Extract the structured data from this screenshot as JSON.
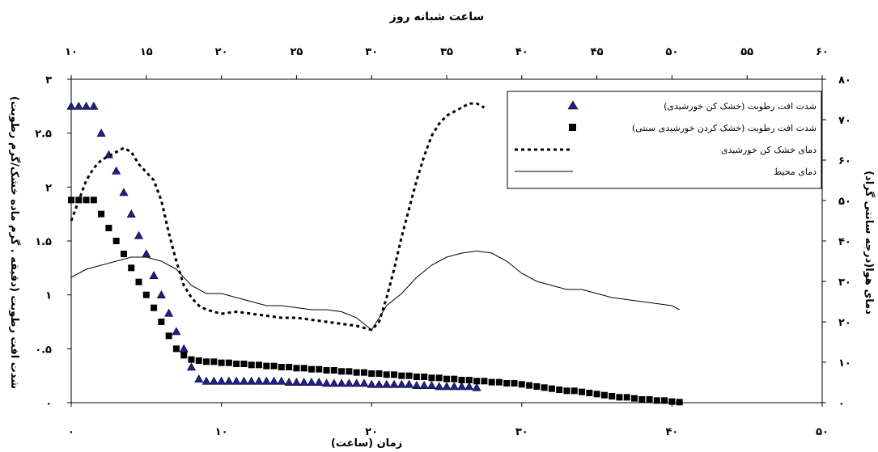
{
  "chart_data": {
    "type": "scatter",
    "top_axis_title": "ساعت شبانه روز",
    "x_axis_title": "زمان (ساعت)",
    "y_left_title": "شدت افت رطوبت (دقیقه . گرم ماده خشک/گرم رطوبت)",
    "y_right_title": "دمای هوا(درجه سانتی گراد)",
    "x_ticks": [
      "۰",
      "۱۰",
      "۲۰",
      "۳۰",
      "۴۰",
      "۵۰"
    ],
    "top_ticks": [
      "۱۰",
      "۱۵",
      "۲۰",
      "۲۵",
      "۳۰",
      "۳۵",
      "۴۰",
      "۴۵",
      "۵۰",
      "۵۵",
      "۶۰"
    ],
    "y_left_ticks": [
      "۰",
      "۰.۵",
      "۱",
      "۱.۵",
      "۲",
      "۲.۵",
      "۳"
    ],
    "y_right_ticks": [
      "۰",
      "۱۰",
      "۲۰",
      "۳۰",
      "۴۰",
      "۵۰",
      "۶۰",
      "۷۰",
      "۸۰"
    ],
    "xlim": [
      0,
      50
    ],
    "top_xlim": [
      10,
      60
    ],
    "y_left_lim": [
      0,
      3
    ],
    "y_right_lim": [
      0,
      80
    ],
    "legend_position": "top-right",
    "series": [
      {
        "name": "شدت افت رطوبت (خشک کن خورشیدی)",
        "marker": "triangle",
        "axis": "left",
        "color": "#1f1f8f",
        "x": [
          0.0,
          0.5,
          1.0,
          1.5,
          2.0,
          2.5,
          3.0,
          3.5,
          4.0,
          4.5,
          5.0,
          5.5,
          6.0,
          6.5,
          7.0,
          7.5,
          8.0,
          8.5,
          9.0,
          9.5,
          10.0,
          10.5,
          11.0,
          11.5,
          12.0,
          12.5,
          13.0,
          13.5,
          14.0,
          14.5,
          15.0,
          15.5,
          16.0,
          16.5,
          17.0,
          17.5,
          18.0,
          18.5,
          19.0,
          19.5,
          20.0,
          20.5,
          21.0,
          21.5,
          22.0,
          22.5,
          23.0,
          23.5,
          24.0,
          24.5,
          25.0,
          25.5,
          26.0,
          26.5,
          27.0
        ],
        "y": [
          2.75,
          2.75,
          2.75,
          2.75,
          2.5,
          2.3,
          2.15,
          1.95,
          1.75,
          1.55,
          1.38,
          1.18,
          1.0,
          0.83,
          0.66,
          0.5,
          0.33,
          0.22,
          0.2,
          0.2,
          0.2,
          0.2,
          0.2,
          0.2,
          0.2,
          0.2,
          0.2,
          0.2,
          0.2,
          0.19,
          0.19,
          0.19,
          0.19,
          0.19,
          0.18,
          0.18,
          0.18,
          0.18,
          0.18,
          0.18,
          0.17,
          0.17,
          0.17,
          0.17,
          0.17,
          0.17,
          0.16,
          0.16,
          0.16,
          0.15,
          0.15,
          0.15,
          0.15,
          0.15,
          0.14
        ]
      },
      {
        "name": "شدت افت رطوبت (خشک کردن خورشیدی سنتی)",
        "marker": "square",
        "axis": "left",
        "color": "#000000",
        "x": [
          0.0,
          0.5,
          1.0,
          1.5,
          2.0,
          2.5,
          3.0,
          3.5,
          4.0,
          4.5,
          5.0,
          5.5,
          6.0,
          6.5,
          7.0,
          7.5,
          8.0,
          8.5,
          9.0,
          9.5,
          10.0,
          10.5,
          11.0,
          11.5,
          12.0,
          12.5,
          13.0,
          13.5,
          14.0,
          14.5,
          15.0,
          15.5,
          16.0,
          16.5,
          17.0,
          17.5,
          18.0,
          18.5,
          19.0,
          19.5,
          20.0,
          20.5,
          21.0,
          21.5,
          22.0,
          22.5,
          23.0,
          23.5,
          24.0,
          24.5,
          25.0,
          25.5,
          26.0,
          26.5,
          27.0,
          27.5,
          28.0,
          28.5,
          29.0,
          29.5,
          30.0,
          30.5,
          31.0,
          31.5,
          32.0,
          32.5,
          33.0,
          33.5,
          34.0,
          34.5,
          35.0,
          35.5,
          36.0,
          36.5,
          37.0,
          37.5,
          38.0,
          38.5,
          39.0,
          39.5,
          40.0,
          40.5
        ],
        "y": [
          1.88,
          1.88,
          1.88,
          1.88,
          1.75,
          1.62,
          1.5,
          1.38,
          1.25,
          1.12,
          1.0,
          0.88,
          0.75,
          0.62,
          0.5,
          0.44,
          0.4,
          0.39,
          0.38,
          0.38,
          0.37,
          0.37,
          0.36,
          0.36,
          0.35,
          0.35,
          0.34,
          0.34,
          0.33,
          0.33,
          0.32,
          0.32,
          0.31,
          0.31,
          0.3,
          0.3,
          0.29,
          0.29,
          0.28,
          0.28,
          0.27,
          0.27,
          0.26,
          0.26,
          0.25,
          0.25,
          0.24,
          0.24,
          0.23,
          0.23,
          0.22,
          0.22,
          0.21,
          0.21,
          0.2,
          0.2,
          0.19,
          0.19,
          0.18,
          0.18,
          0.17,
          0.16,
          0.15,
          0.14,
          0.13,
          0.12,
          0.11,
          0.11,
          0.1,
          0.09,
          0.08,
          0.07,
          0.06,
          0.05,
          0.05,
          0.04,
          0.03,
          0.03,
          0.02,
          0.02,
          0.01,
          0.005
        ]
      },
      {
        "name": "دمای خشک کن خورشیدی",
        "style": "dashed",
        "axis": "right",
        "color": "#000000",
        "x": [
          0,
          0.5,
          1,
          1.5,
          2,
          2.5,
          3,
          3.5,
          4,
          4.5,
          5,
          5.5,
          6,
          6.5,
          7,
          7.5,
          8,
          8.5,
          9,
          10,
          11,
          12,
          13,
          14,
          15,
          16,
          17,
          18,
          19,
          19.5,
          20,
          20.5,
          21,
          21.5,
          22,
          22.5,
          23,
          23.5,
          24,
          24.5,
          25,
          25.5,
          26,
          26.5,
          27,
          27.5
        ],
        "y": [
          45,
          50,
          55,
          58,
          60,
          61,
          62,
          63,
          62,
          59,
          57,
          55,
          50,
          42,
          35,
          29,
          26,
          24,
          23,
          22,
          22.5,
          22,
          21.5,
          21,
          21,
          20.5,
          20,
          19.5,
          19,
          18.5,
          18,
          20,
          26,
          33,
          41,
          48,
          55,
          61,
          66,
          69,
          71,
          72,
          73,
          74,
          74,
          73
        ]
      },
      {
        "name": "دمای محیط",
        "style": "solid",
        "axis": "right",
        "color": "#000000",
        "x": [
          0,
          1,
          2,
          3,
          4,
          5,
          6,
          7,
          8,
          9,
          10,
          11,
          12,
          13,
          14,
          15,
          16,
          17,
          18,
          19,
          20,
          21,
          22,
          23,
          24,
          25,
          26,
          27,
          28,
          29,
          30,
          31,
          32,
          33,
          34,
          35,
          36,
          37,
          38,
          39,
          40,
          40.5
        ],
        "y": [
          31,
          33,
          34,
          35,
          36,
          36,
          35,
          33,
          29,
          27,
          27,
          26,
          25,
          24,
          24,
          23.5,
          23,
          23,
          22.5,
          21,
          18,
          24,
          27,
          31,
          34,
          36,
          37,
          37.5,
          37,
          35,
          32,
          30,
          29,
          28,
          28,
          27,
          26,
          25.5,
          25,
          24.5,
          24,
          23
        ]
      }
    ]
  }
}
